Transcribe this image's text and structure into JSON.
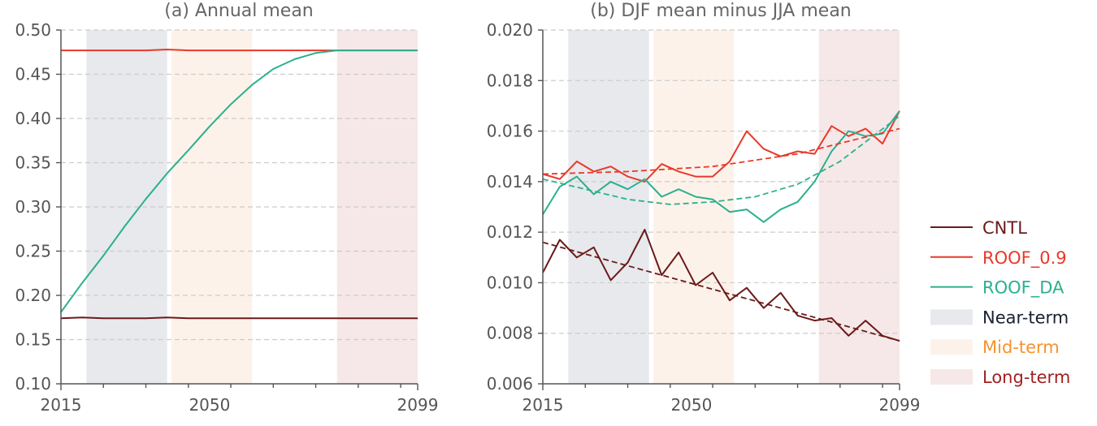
{
  "colors": {
    "CNTL": "#6b1a1a",
    "ROOF_0.9": "#e8392a",
    "ROOF_DA": "#2bb08e",
    "near_fill": "#e7e9ec",
    "mid_fill": "#fdf2ea",
    "long_fill": "#f6e8e8",
    "near_text": "#1a2233",
    "mid_text": "#f7932d",
    "long_text": "#a32020",
    "grid": "#cccccc",
    "axis": "#555555"
  },
  "chart_data": [
    {
      "type": "line",
      "title": "(a) Annual mean",
      "xlabel": "",
      "ylabel": "",
      "xlim": [
        2015,
        2099
      ],
      "ylim": [
        0.1,
        0.5
      ],
      "xticks": [
        2015,
        2050,
        2099
      ],
      "xticklabels": [
        "2015",
        "2050",
        "2099"
      ],
      "yticks": [
        0.1,
        0.15,
        0.2,
        0.25,
        0.3,
        0.35,
        0.4,
        0.45,
        0.5
      ],
      "yticklabels": [
        "0.10",
        "0.15",
        "0.20",
        "0.25",
        "0.30",
        "0.35",
        "0.40",
        "0.45",
        "0.50"
      ],
      "grid": "horizontal dashed",
      "periods": [
        {
          "name": "Near-term",
          "start": 2021,
          "end": 2040
        },
        {
          "name": "Mid-term",
          "start": 2041,
          "end": 2060
        },
        {
          "name": "Long-term",
          "start": 2080,
          "end": 2099
        }
      ],
      "series": [
        {
          "name": "CNTL",
          "x": [
            2015,
            2020,
            2025,
            2030,
            2035,
            2040,
            2045,
            2050,
            2055,
            2060,
            2065,
            2070,
            2075,
            2080,
            2085,
            2090,
            2095,
            2099
          ],
          "values": [
            0.174,
            0.175,
            0.174,
            0.174,
            0.174,
            0.175,
            0.174,
            0.174,
            0.174,
            0.174,
            0.174,
            0.174,
            0.174,
            0.174,
            0.174,
            0.174,
            0.174,
            0.174
          ]
        },
        {
          "name": "ROOF_0.9",
          "x": [
            2015,
            2020,
            2025,
            2030,
            2035,
            2040,
            2045,
            2050,
            2055,
            2060,
            2065,
            2070,
            2075,
            2080,
            2085,
            2090,
            2095,
            2099
          ],
          "values": [
            0.477,
            0.477,
            0.477,
            0.477,
            0.477,
            0.478,
            0.477,
            0.477,
            0.477,
            0.477,
            0.477,
            0.477,
            0.477,
            0.477,
            0.477,
            0.477,
            0.477,
            0.477
          ]
        },
        {
          "name": "ROOF_DA",
          "x": [
            2015,
            2020,
            2025,
            2030,
            2035,
            2040,
            2045,
            2050,
            2055,
            2060,
            2065,
            2070,
            2075,
            2080,
            2085,
            2090,
            2095,
            2099
          ],
          "values": [
            0.181,
            0.214,
            0.245,
            0.278,
            0.309,
            0.338,
            0.364,
            0.391,
            0.416,
            0.438,
            0.456,
            0.467,
            0.474,
            0.477,
            0.477,
            0.477,
            0.477,
            0.477
          ]
        }
      ]
    },
    {
      "type": "line",
      "title": "(b) DJF mean minus JJA mean",
      "xlabel": "",
      "ylabel": "",
      "xlim": [
        2015,
        2099
      ],
      "ylim": [
        0.006,
        0.02
      ],
      "xticks": [
        2015,
        2050,
        2099
      ],
      "xticklabels": [
        "2015",
        "2050",
        "2099"
      ],
      "yticks": [
        0.006,
        0.008,
        0.01,
        0.012,
        0.014,
        0.016,
        0.018,
        0.02
      ],
      "yticklabels": [
        "0.006",
        "0.008",
        "0.010",
        "0.012",
        "0.014",
        "0.016",
        "0.018",
        "0.020"
      ],
      "grid": "horizontal dashed",
      "periods": [
        {
          "name": "Near-term",
          "start": 2021,
          "end": 2040
        },
        {
          "name": "Mid-term",
          "start": 2041,
          "end": 2060
        },
        {
          "name": "Long-term",
          "start": 2080,
          "end": 2099
        }
      ],
      "series": [
        {
          "name": "CNTL",
          "x": [
            2015,
            2019,
            2023,
            2027,
            2031,
            2035,
            2039,
            2043,
            2047,
            2051,
            2055,
            2059,
            2063,
            2067,
            2071,
            2075,
            2079,
            2083,
            2087,
            2091,
            2095,
            2099
          ],
          "values": [
            0.0104,
            0.0117,
            0.011,
            0.0114,
            0.0101,
            0.0108,
            0.0121,
            0.0103,
            0.0112,
            0.0099,
            0.0104,
            0.0093,
            0.0098,
            0.009,
            0.0096,
            0.0087,
            0.0085,
            0.0086,
            0.0079,
            0.0085,
            0.0079,
            0.0077
          ]
        },
        {
          "name": "ROOF_0.9",
          "x": [
            2015,
            2019,
            2023,
            2027,
            2031,
            2035,
            2039,
            2043,
            2047,
            2051,
            2055,
            2059,
            2063,
            2067,
            2071,
            2075,
            2079,
            2083,
            2087,
            2091,
            2095,
            2099
          ],
          "values": [
            0.0143,
            0.0141,
            0.0148,
            0.0144,
            0.0146,
            0.0142,
            0.014,
            0.0147,
            0.0144,
            0.0142,
            0.0142,
            0.0148,
            0.016,
            0.0153,
            0.015,
            0.0152,
            0.0151,
            0.0162,
            0.0158,
            0.0161,
            0.0155,
            0.0168
          ]
        },
        {
          "name": "ROOF_DA",
          "x": [
            2015,
            2019,
            2023,
            2027,
            2031,
            2035,
            2039,
            2043,
            2047,
            2051,
            2055,
            2059,
            2063,
            2067,
            2071,
            2075,
            2079,
            2083,
            2087,
            2091,
            2095,
            2099
          ],
          "values": [
            0.0127,
            0.0138,
            0.0142,
            0.0135,
            0.014,
            0.0137,
            0.0141,
            0.0134,
            0.0137,
            0.0134,
            0.0133,
            0.0128,
            0.0129,
            0.0124,
            0.0129,
            0.0132,
            0.014,
            0.0152,
            0.016,
            0.0158,
            0.0159,
            0.0168
          ]
        },
        {
          "name": "CNTL trend",
          "x": [
            2015,
            2099
          ],
          "values": [
            0.0116,
            0.0077
          ]
        },
        {
          "name": "ROOF_0.9 trend",
          "x": [
            2015,
            2035,
            2055,
            2075,
            2099
          ],
          "values": [
            0.0143,
            0.0144,
            0.0146,
            0.0151,
            0.0161
          ]
        },
        {
          "name": "ROOF_DA trend",
          "x": [
            2015,
            2025,
            2035,
            2045,
            2055,
            2065,
            2075,
            2085,
            2099
          ],
          "values": [
            0.0141,
            0.0137,
            0.0133,
            0.0131,
            0.0132,
            0.0134,
            0.0139,
            0.0148,
            0.0166
          ]
        }
      ]
    }
  ],
  "legend": {
    "position": "right",
    "items": [
      {
        "label": "CNTL",
        "kind": "line",
        "key": "CNTL"
      },
      {
        "label": "ROOF_0.9",
        "kind": "line",
        "key": "ROOF_0.9"
      },
      {
        "label": "ROOF_DA",
        "kind": "line",
        "key": "ROOF_DA"
      },
      {
        "label": "Near-term",
        "kind": "patch",
        "key": "near"
      },
      {
        "label": "Mid-term",
        "kind": "patch",
        "key": "mid"
      },
      {
        "label": "Long-term",
        "kind": "patch",
        "key": "long"
      }
    ]
  }
}
